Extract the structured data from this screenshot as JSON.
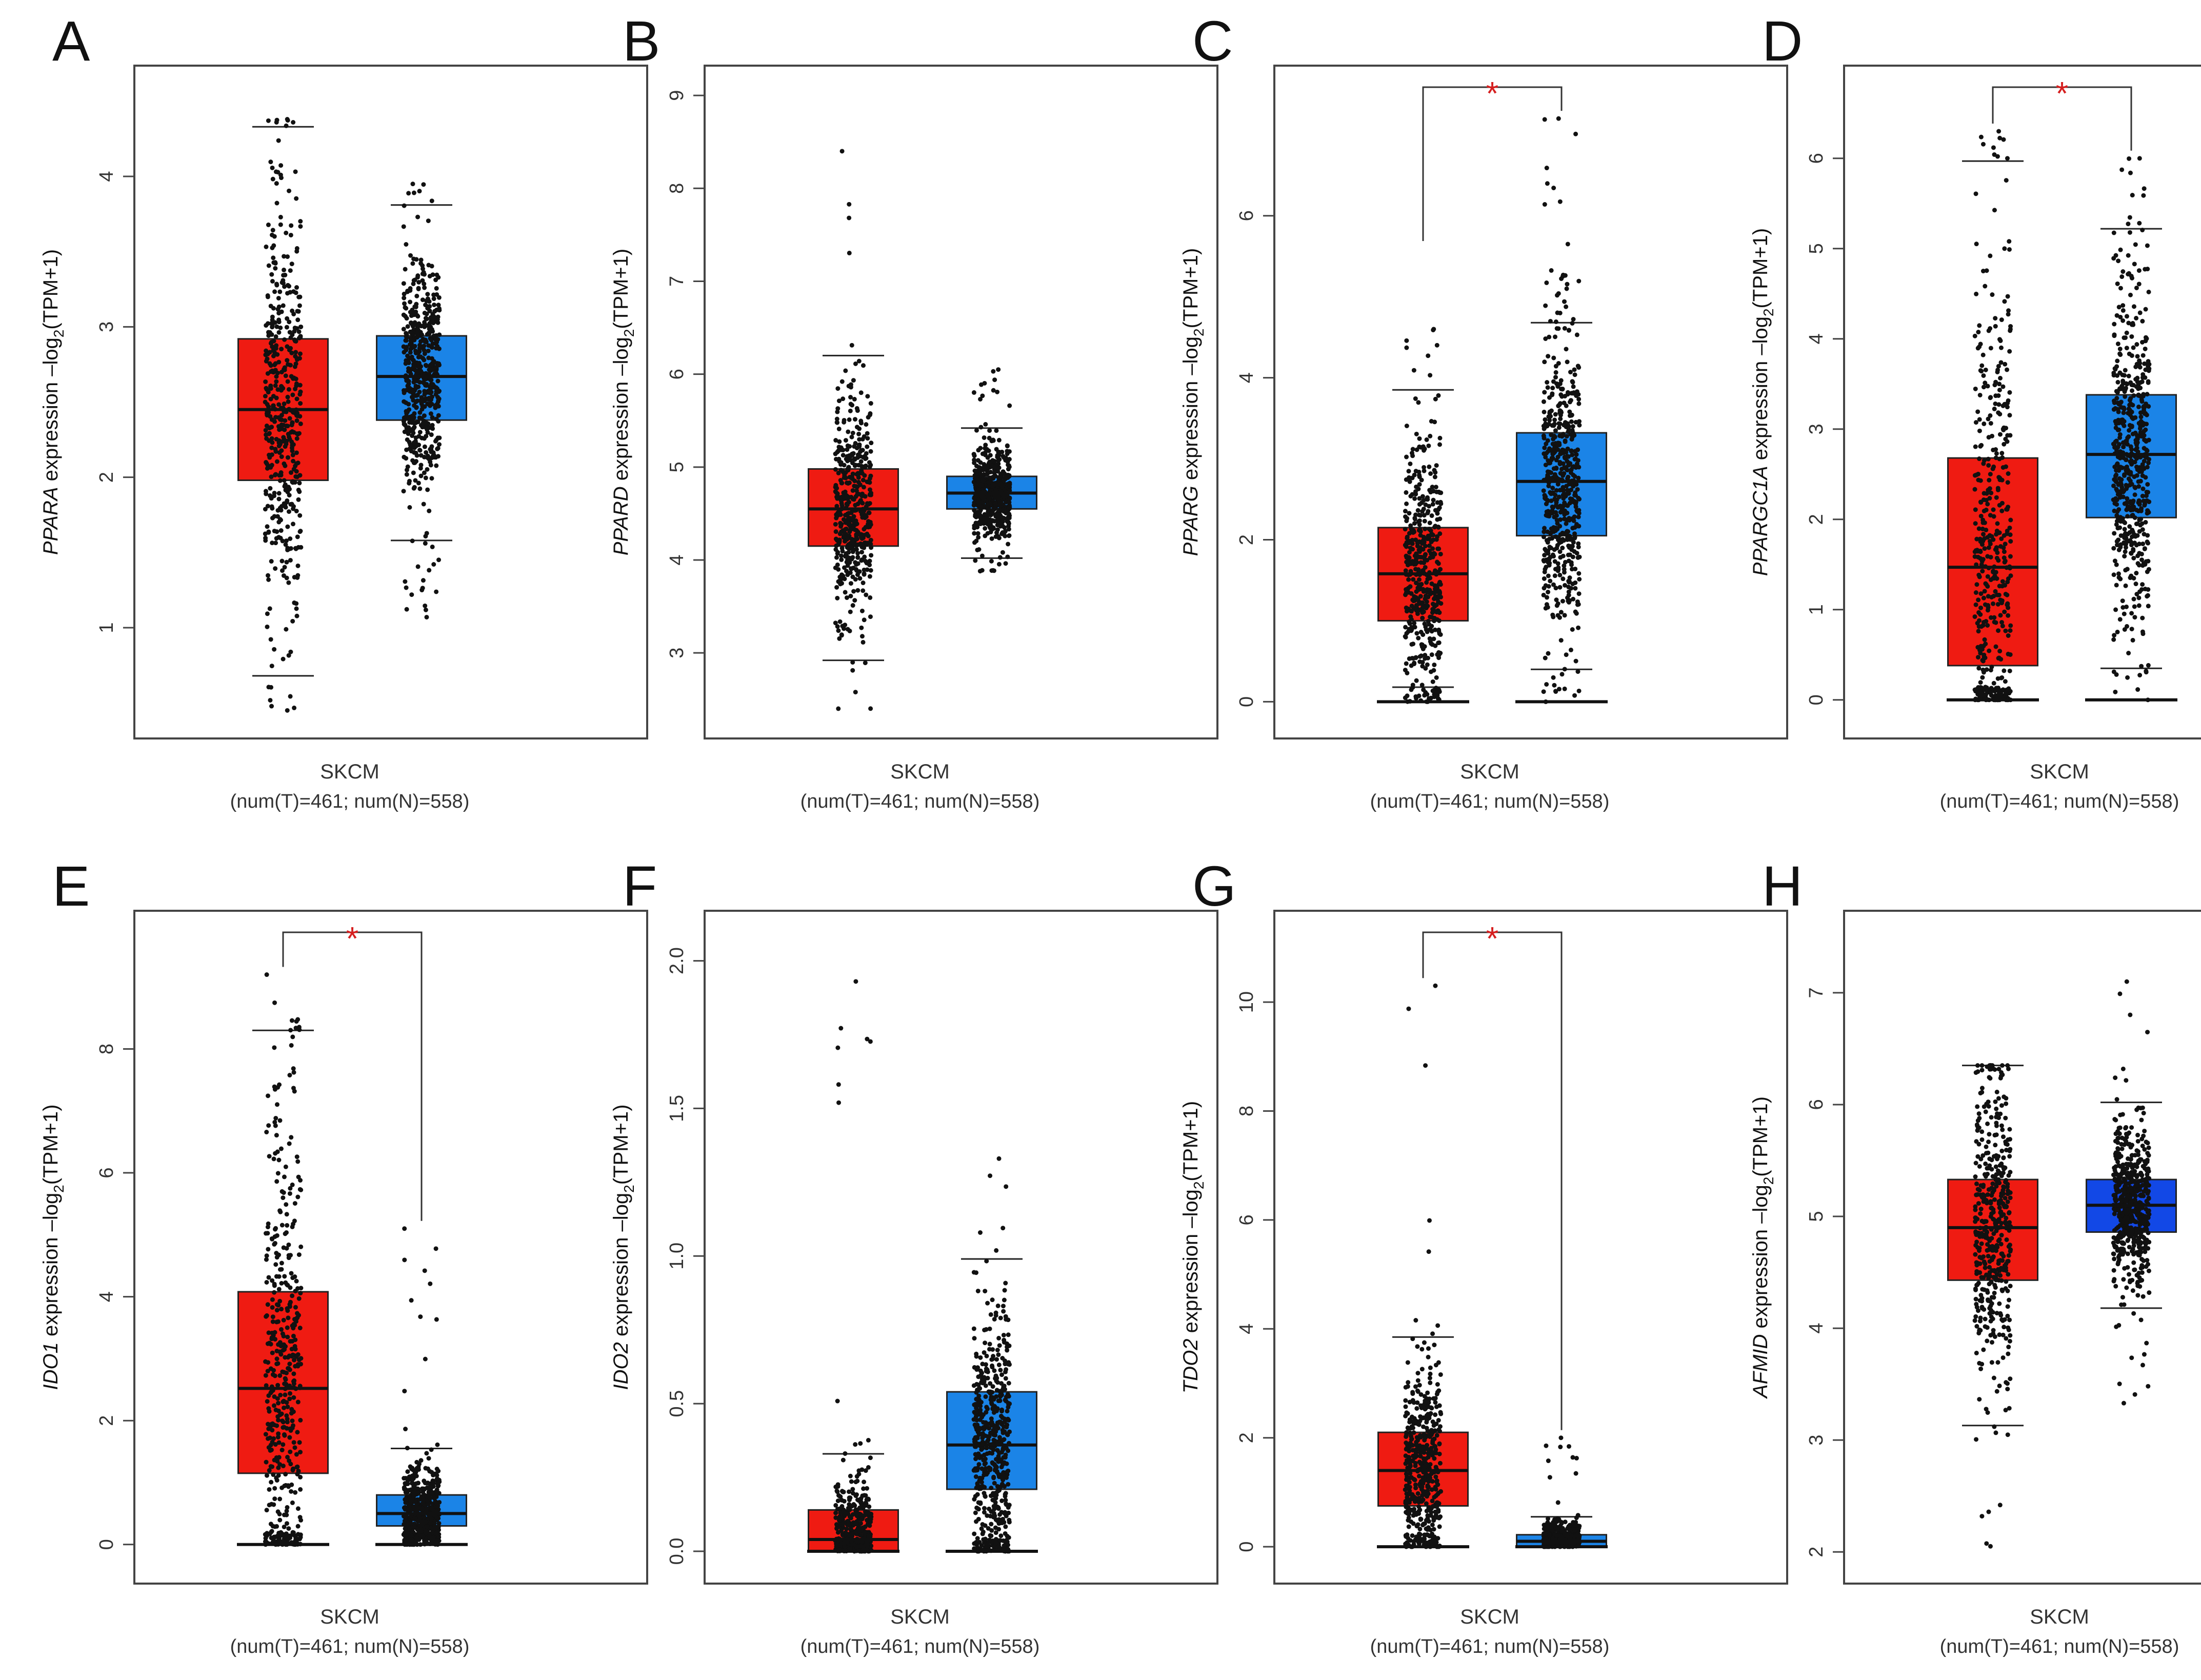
{
  "figure": {
    "colors": {
      "tumor": "#ef1b12",
      "normal": "#1b84e7",
      "normal_dark": "#1248e6",
      "points": "#111111",
      "star": "#d61f1f"
    },
    "significance_symbol": "*"
  },
  "chart_data": [
    {
      "panel": "A",
      "type": "box",
      "gene": "PPARA",
      "ylabel_suffix": " expression –log",
      "ylabel_sub": "2",
      "ylabel_tail": "(TPM+1)",
      "xlabel": "SKCM",
      "counts": "(num(T)=461; num(N)=558)",
      "ylim": [
        0.4,
        4.6
      ],
      "yticks": [
        1,
        2,
        3,
        4
      ],
      "significant": false,
      "series": [
        {
          "name": "Tumor",
          "n": 461,
          "whisker_low": 0.68,
          "q1": 1.98,
          "median": 2.45,
          "q3": 2.92,
          "whisker_high": 4.33,
          "min": 0.45,
          "max": 4.38
        },
        {
          "name": "Normal",
          "n": 558,
          "whisker_low": 1.58,
          "q1": 2.38,
          "median": 2.67,
          "q3": 2.94,
          "whisker_high": 3.81,
          "min": 1.07,
          "max": 3.95
        }
      ]
    },
    {
      "panel": "B",
      "type": "box",
      "gene": "PPARD",
      "ylabel_suffix": " expression –log",
      "ylabel_sub": "2",
      "ylabel_tail": "(TPM+1)",
      "xlabel": "SKCM",
      "counts": "(num(T)=461; num(N)=558)",
      "ylim": [
        2.3,
        9.1
      ],
      "yticks": [
        3,
        4,
        5,
        6,
        7,
        8,
        9
      ],
      "significant": false,
      "series": [
        {
          "name": "Tumor",
          "n": 461,
          "whisker_low": 2.92,
          "q1": 4.15,
          "median": 4.55,
          "q3": 4.98,
          "whisker_high": 6.2,
          "min": 2.4,
          "max": 8.4
        },
        {
          "name": "Normal",
          "n": 558,
          "whisker_low": 4.02,
          "q1": 4.55,
          "median": 4.72,
          "q3": 4.9,
          "whisker_high": 5.42,
          "min": 3.88,
          "max": 6.05
        }
      ]
    },
    {
      "panel": "C",
      "type": "box",
      "gene": "PPARG",
      "ylabel_suffix": " expression –log",
      "ylabel_sub": "2",
      "ylabel_tail": "(TPM+1)",
      "xlabel": "SKCM",
      "counts": "(num(T)=461; num(N)=558)",
      "ylim": [
        -0.2,
        7.6
      ],
      "yticks": [
        0,
        2,
        4,
        6
      ],
      "significant": true,
      "series": [
        {
          "name": "Tumor",
          "n": 461,
          "whisker_low": 0.18,
          "q1": 1.0,
          "median": 1.58,
          "q3": 2.15,
          "whisker_high": 3.85,
          "min": 0.0,
          "max": 4.6
        },
        {
          "name": "Normal",
          "n": 558,
          "whisker_low": 0.4,
          "q1": 2.05,
          "median": 2.72,
          "q3": 3.32,
          "whisker_high": 4.68,
          "min": 0.0,
          "max": 7.2
        }
      ]
    },
    {
      "panel": "D",
      "type": "box",
      "gene": "PPARGC1A",
      "ylabel_suffix": " expression –log",
      "ylabel_sub": "2",
      "ylabel_tail": "(TPM+1)",
      "xlabel": "SKCM",
      "counts": "(num(T)=461; num(N)=558)",
      "ylim": [
        -0.2,
        6.8
      ],
      "yticks": [
        0,
        1,
        2,
        3,
        4,
        5,
        6
      ],
      "significant": true,
      "series": [
        {
          "name": "Tumor",
          "n": 461,
          "whisker_low": 0.0,
          "q1": 0.38,
          "median": 1.47,
          "q3": 2.68,
          "whisker_high": 5.97,
          "min": 0.0,
          "max": 6.3
        },
        {
          "name": "Normal",
          "n": 558,
          "whisker_low": 0.35,
          "q1": 2.02,
          "median": 2.72,
          "q3": 3.38,
          "whisker_high": 5.22,
          "min": 0.0,
          "max": 6.0
        }
      ]
    },
    {
      "panel": "E",
      "type": "box",
      "gene": "IDO1",
      "ylabel_suffix": " expression –log",
      "ylabel_sub": "2",
      "ylabel_tail": "(TPM+1)",
      "xlabel": "SKCM",
      "counts": "(num(T)=461; num(N)=558)",
      "ylim": [
        -0.3,
        9.9
      ],
      "yticks": [
        0,
        2,
        4,
        6,
        8
      ],
      "significant": true,
      "series": [
        {
          "name": "Tumor",
          "n": 461,
          "whisker_low": 0.0,
          "q1": 1.15,
          "median": 2.52,
          "q3": 4.08,
          "whisker_high": 8.3,
          "min": 0.0,
          "max": 9.2
        },
        {
          "name": "Normal",
          "n": 558,
          "whisker_low": 0.0,
          "q1": 0.3,
          "median": 0.5,
          "q3": 0.8,
          "whisker_high": 1.55,
          "min": 0.0,
          "max": 5.1
        }
      ]
    },
    {
      "panel": "F",
      "type": "box",
      "gene": "IDO2",
      "ylabel_suffix": " expression –log",
      "ylabel_sub": "2",
      "ylabel_tail": "(TPM+1)",
      "xlabel": "SKCM",
      "counts": "(num(T)=461; num(N)=558)",
      "ylim": [
        -0.04,
        2.1
      ],
      "yticks": [
        0.0,
        0.5,
        1.0,
        1.5,
        2.0
      ],
      "ytick_labels": [
        "0.0",
        "0.5",
        "1.0",
        "1.5",
        "2.0"
      ],
      "significant": false,
      "series": [
        {
          "name": "Tumor",
          "n": 461,
          "whisker_low": 0.0,
          "q1": 0.0,
          "median": 0.04,
          "q3": 0.14,
          "whisker_high": 0.33,
          "min": 0.0,
          "max": 1.93
        },
        {
          "name": "Normal",
          "n": 558,
          "whisker_low": 0.0,
          "q1": 0.21,
          "median": 0.36,
          "q3": 0.54,
          "whisker_high": 0.99,
          "min": 0.0,
          "max": 1.33
        }
      ]
    },
    {
      "panel": "G",
      "type": "box",
      "gene": "TDO2",
      "ylabel_suffix": " expression –log",
      "ylabel_sub": "2",
      "ylabel_tail": "(TPM+1)",
      "xlabel": "SKCM",
      "counts": "(num(T)=461; num(N)=558)",
      "ylim": [
        -0.3,
        11.3
      ],
      "yticks": [
        0,
        2,
        4,
        6,
        8,
        10
      ],
      "significant": true,
      "series": [
        {
          "name": "Tumor",
          "n": 461,
          "whisker_low": 0.0,
          "q1": 0.75,
          "median": 1.4,
          "q3": 2.1,
          "whisker_high": 3.85,
          "min": 0.0,
          "max": 10.3
        },
        {
          "name": "Normal",
          "n": 558,
          "whisker_low": 0.0,
          "q1": 0.0,
          "median": 0.1,
          "q3": 0.22,
          "whisker_high": 0.55,
          "min": 0.0,
          "max": 2.0
        }
      ]
    },
    {
      "panel": "H",
      "type": "box",
      "gene": "AFMID",
      "ylabel_suffix": " expression –log",
      "ylabel_sub": "2",
      "ylabel_tail": "(TPM+1)",
      "xlabel": "SKCM",
      "counts": "(num(T)=461; num(N)=558)",
      "ylim": [
        1.9,
        7.55
      ],
      "yticks": [
        2,
        3,
        4,
        5,
        6,
        7
      ],
      "significant": false,
      "series": [
        {
          "name": "Tumor",
          "n": 461,
          "whisker_low": 3.13,
          "q1": 4.43,
          "median": 4.9,
          "q3": 5.33,
          "whisker_high": 6.35,
          "min": 2.05,
          "max": 6.35
        },
        {
          "name": "Normal",
          "n": 558,
          "whisker_low": 4.18,
          "q1": 4.86,
          "median": 5.1,
          "q3": 5.33,
          "whisker_high": 6.02,
          "min": 3.33,
          "max": 7.1
        }
      ]
    }
  ]
}
